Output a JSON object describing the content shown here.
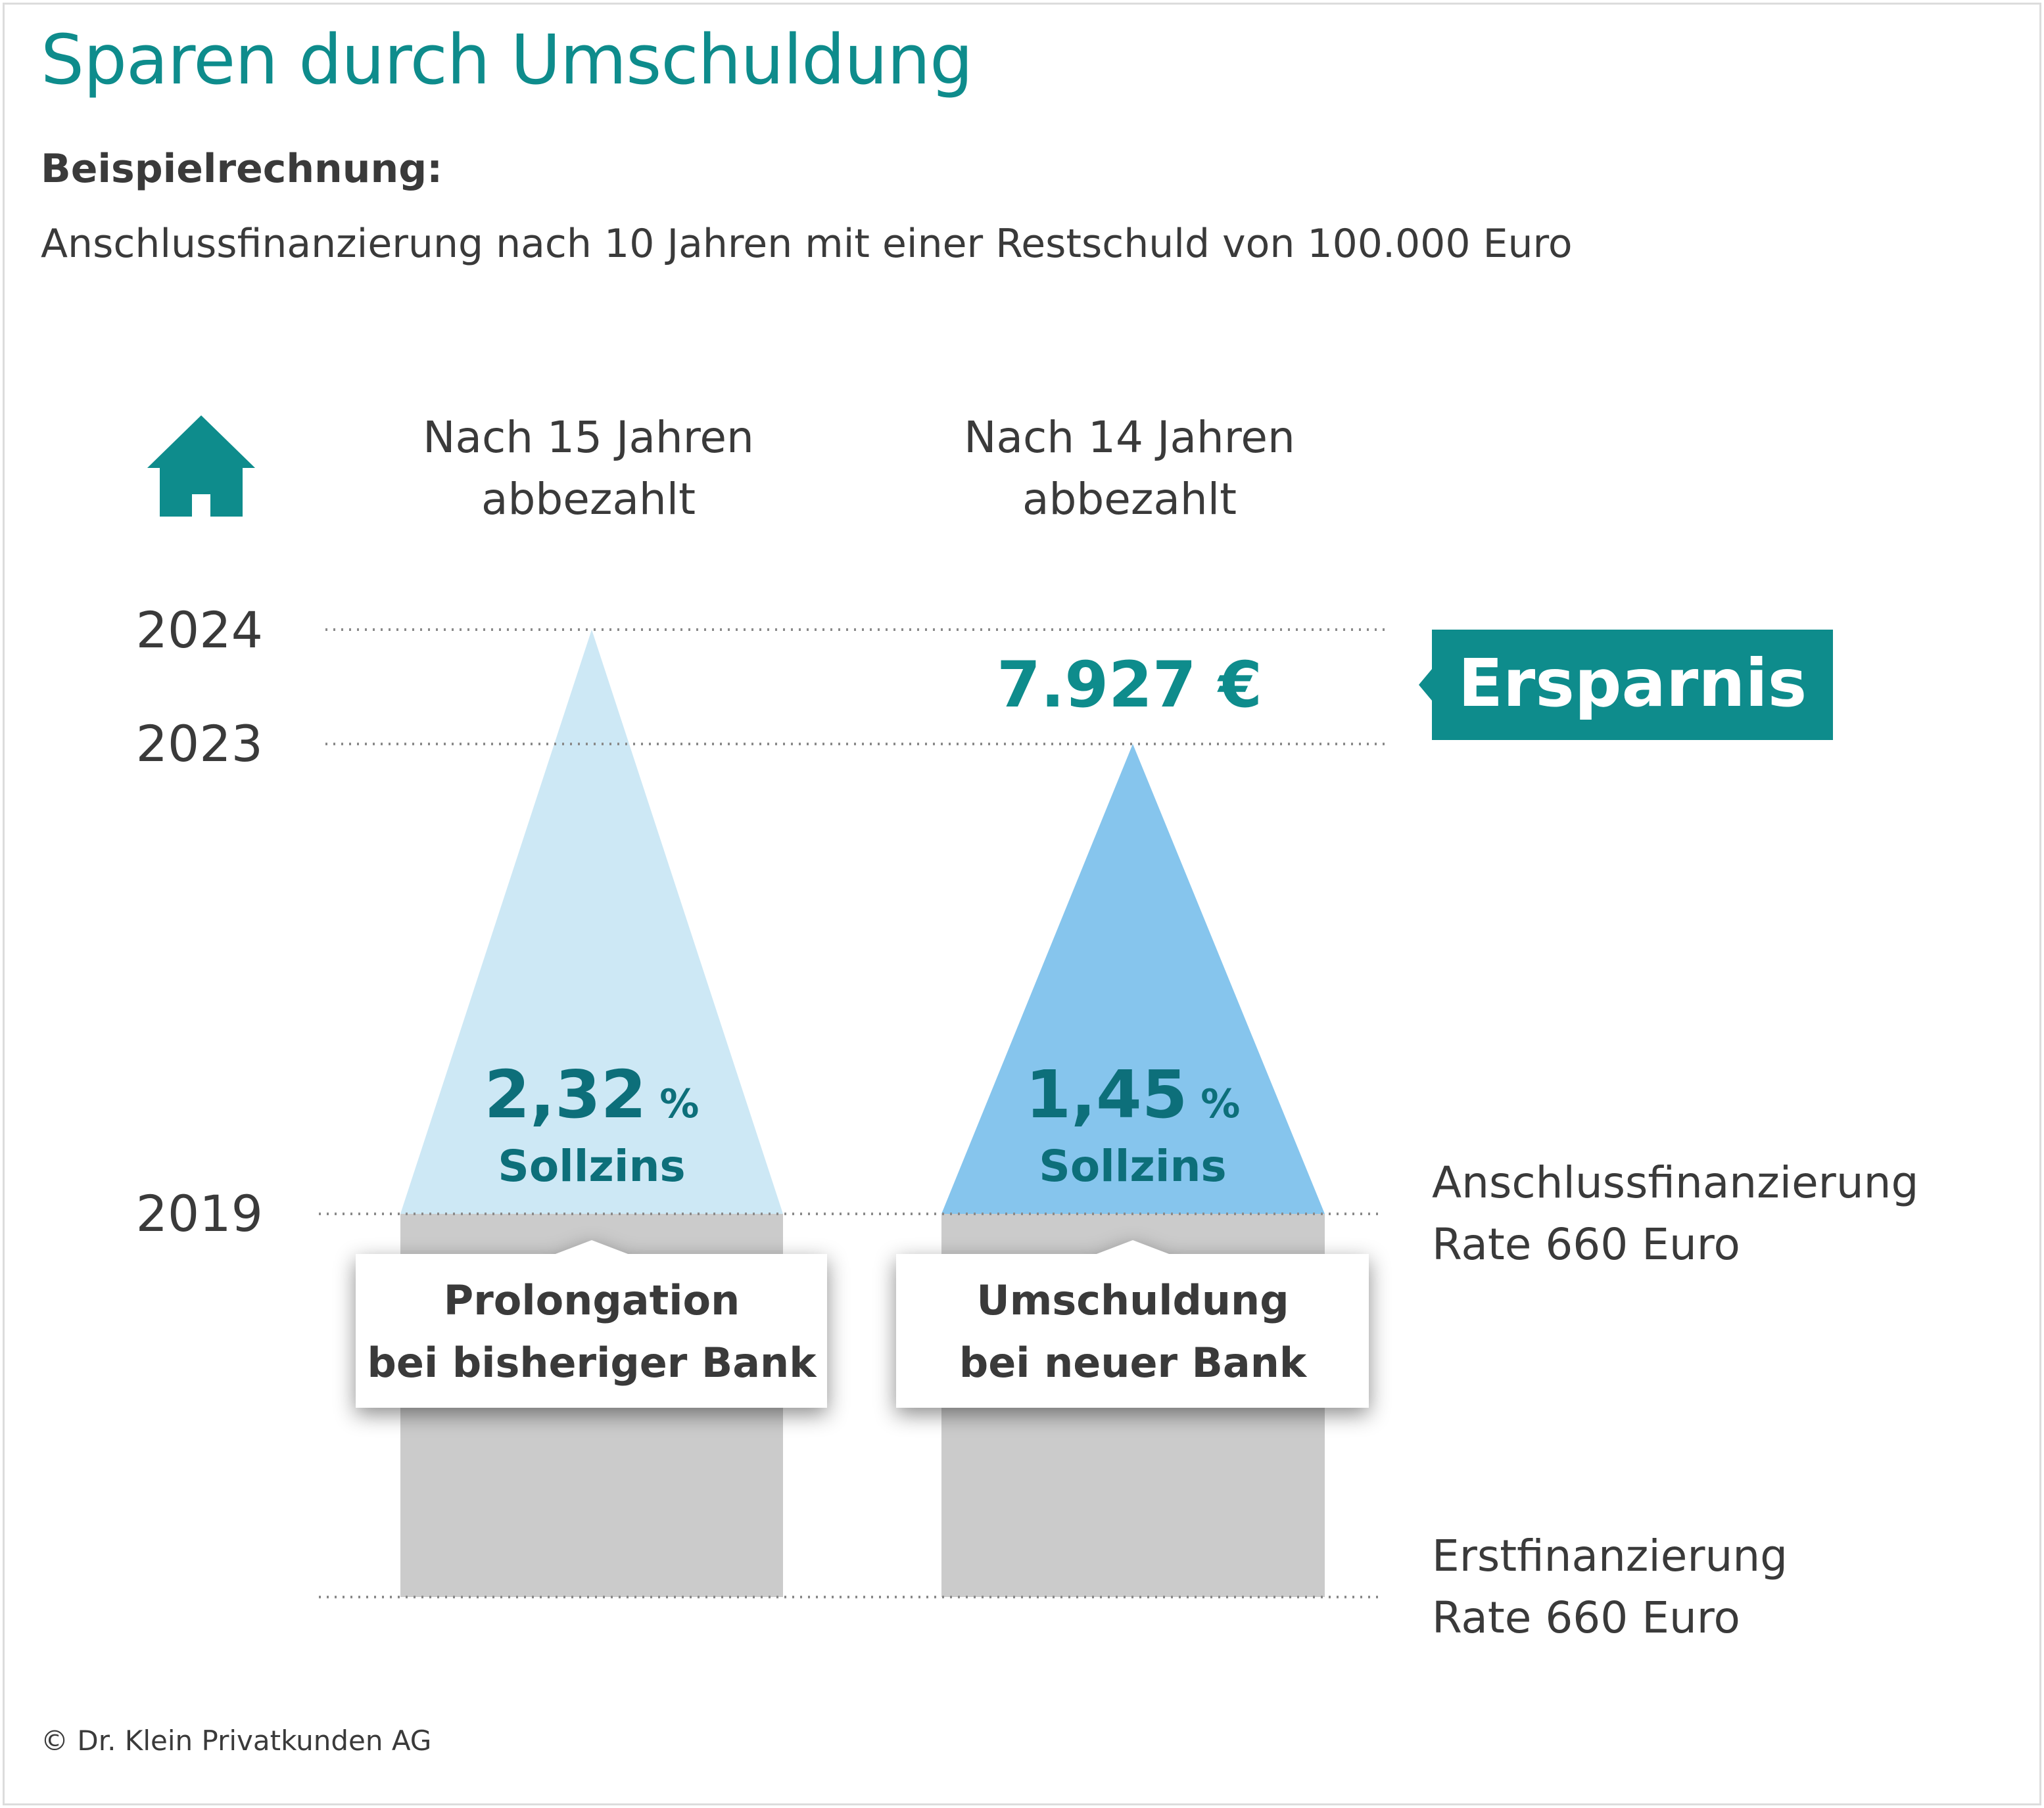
{
  "header": {
    "title": "Sparen durch Umschuldung",
    "subtitle": "Beispielrechnung:",
    "description": "Anschlussfinanzierung nach 10 Jahren mit einer Restschuld von 100.000 Euro"
  },
  "footer": {
    "copyright": "© Dr. Klein Privatkunden AG"
  },
  "colors": {
    "teal": "#0e8c8c",
    "dark_teal": "#0d6f7a",
    "light_blue": "#cde8f5",
    "medium_blue": "#86c5ed",
    "gray": "#cbcbcb",
    "text": "#3a3a3a"
  },
  "chart_data": {
    "type": "diagram-chart",
    "icon": "house-icon",
    "y_axis": {
      "ticks": [
        2019,
        2023,
        2024
      ],
      "baseline_label": ""
    },
    "columns": [
      {
        "heading": [
          "Nach 15 Jahren",
          "abbezahlt"
        ],
        "end_year": 2024,
        "rate_value": "2,32",
        "rate_unit": "%",
        "rate_label": "Sollzins",
        "callout": [
          "Prolongation",
          "bei bisheriger Bank"
        ]
      },
      {
        "heading": [
          "Nach 14 Jahren",
          "abbezahlt"
        ],
        "end_year": 2023,
        "rate_value": "1,45",
        "rate_unit": "%",
        "rate_label": "Sollzins",
        "callout": [
          "Umschuldung",
          "bei neuer Bank"
        ]
      }
    ],
    "savings": {
      "value": "7.927 €",
      "label": "Ersparnis"
    },
    "phases": [
      {
        "label": [
          "Anschlussfinanzierung",
          "Rate 660 Euro"
        ]
      },
      {
        "label": [
          "Erstfinanzierung",
          "Rate 660 Euro"
        ]
      }
    ]
  }
}
